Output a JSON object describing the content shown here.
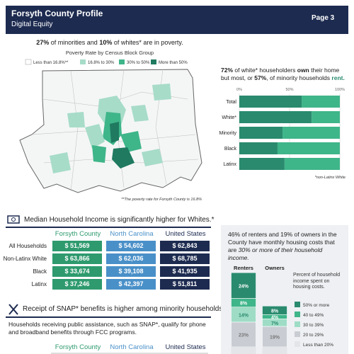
{
  "header": {
    "title": "Forsyth County Profile",
    "subtitle": "Digital Equity",
    "page": "Page 3"
  },
  "poverty": {
    "headline": [
      "27%",
      " of minorities and ",
      "10%",
      " of whites* are in poverty."
    ],
    "map_title": "Poverty Rate by Census Block Group",
    "legend": [
      "Less than 16.8%**",
      "16.8% to 30%",
      "30% to 50%",
      "More than 50%"
    ],
    "footnote": "**The poverty rate for Forsyth County is 16.8%"
  },
  "tenure": {
    "headline": [
      "72%",
      " of white* householders ",
      "own",
      " their home but most, or ",
      "57%",
      ", of minority households ",
      "rent",
      "."
    ],
    "footnote": "*non-Latinx White",
    "chart_data": {
      "type": "hbar",
      "categories": [
        "Total",
        "White*",
        "Minority",
        "Black",
        "Latinx"
      ],
      "series": [
        {
          "color": "#2a8a6e",
          "values": [
            62,
            72,
            43,
            38,
            45
          ]
        },
        {
          "color": "#3fb58a",
          "values": [
            38,
            28,
            57,
            62,
            55
          ]
        }
      ],
      "xlim": [
        0,
        100
      ],
      "xticks": [
        {
          "value": 0,
          "label": "0%"
        },
        {
          "value": 50,
          "label": "50%"
        },
        {
          "value": 100,
          "label": "100%"
        }
      ],
      "grid": true
    }
  },
  "income": {
    "title": "Median Household Income is significantly higher for Whites.*",
    "columns": [
      "Forsyth County",
      "North Carolina",
      "United States"
    ],
    "column_colors": [
      "#2e9a6e",
      "#4a90c8",
      "#1d2b50"
    ],
    "rows": [
      {
        "label": "All Households",
        "values": [
          "$ 51,569",
          "$ 54,602",
          "$ 62,843"
        ]
      },
      {
        "label": "Non-Latinx White",
        "values": [
          "$ 63,866",
          "$ 62,036",
          "$ 68,785"
        ]
      },
      {
        "label": "Black",
        "values": [
          "$ 33,674",
          "$ 39,108",
          "$ 41,935"
        ]
      },
      {
        "label": "Latinx",
        "values": [
          "$ 37,246",
          "$ 42,397",
          "$ 51,811"
        ]
      }
    ]
  },
  "snap": {
    "title": "Receipt of SNAP* benefits is higher among minority households.",
    "text": "Households receiving public assistance, such as SNAP*, qualify for phone and broadband benefits through FCC programs.",
    "columns": [
      "Forsyth County",
      "North Carolina",
      "United States"
    ]
  },
  "housing": {
    "headline": [
      "46% of renters and 19% of owners in the County have monthly housing costs that are ",
      "30% or more of their household income."
    ],
    "legend_title": "Percent of household income spent on housing costs.",
    "chart_data": {
      "type": "stacked-bar",
      "categories": [
        "Renters",
        "Owners"
      ],
      "series": [
        {
          "name": "50% or more",
          "color": "#2a8a6e",
          "values": [
            24,
            8
          ],
          "value_labels": [
            "24%",
            "8%"
          ]
        },
        {
          "name": "40 to 49%",
          "color": "#3fb58a",
          "values": [
            8,
            4
          ],
          "value_labels": [
            "8%",
            "4%"
          ]
        },
        {
          "name": "30 to 39%",
          "color": "#9fdcc6",
          "values": [
            14,
            7
          ],
          "value_labels": [
            "14%",
            "7%"
          ]
        },
        {
          "name": "20 to 29%",
          "color": "#c9cdd3",
          "values": [
            23,
            19
          ],
          "value_labels": [
            "23%",
            "19%"
          ]
        },
        {
          "name": "Less than 20%",
          "color": "#e3e5e9",
          "values": [
            null,
            null
          ]
        }
      ]
    }
  }
}
